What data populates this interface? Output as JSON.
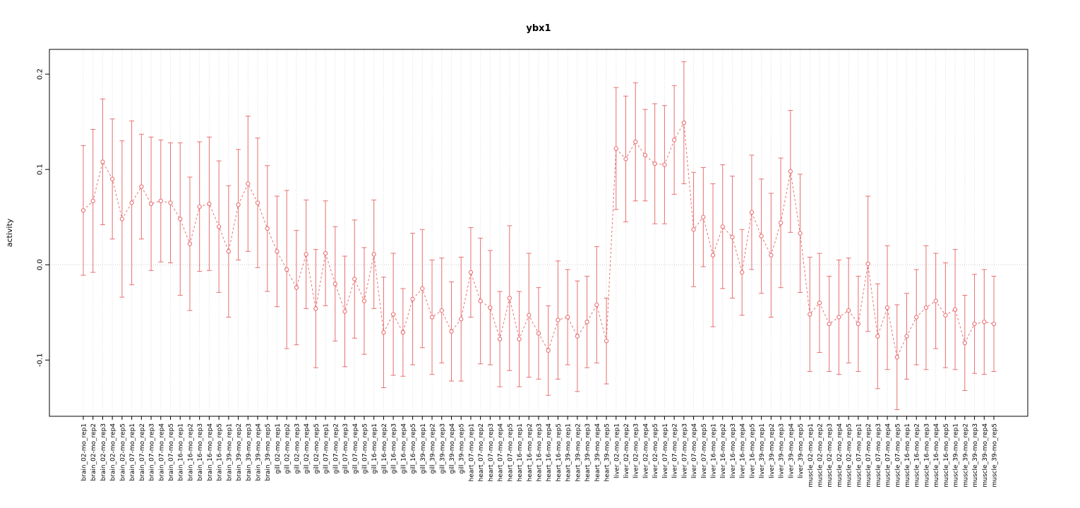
{
  "chart_data": {
    "type": "line",
    "title": "ybx1",
    "ylabel": "activity",
    "xlabel": "",
    "marker": "open-circle",
    "line_style": "dashed",
    "error_bars": true,
    "legend": "none",
    "grid": "vertical dotted gridline per category; horizontal dotted line at y=0",
    "ylim": [
      -0.159,
      0.226
    ],
    "yticks": [
      "-0.1",
      "0.0",
      "0.1",
      "0.2"
    ],
    "ytick_values": [
      -0.1,
      0.0,
      0.1,
      0.2
    ],
    "colors": {
      "series": "#e87070",
      "grid": "#dcdcdc",
      "zero_line": "#cccccc",
      "axis": "#000000",
      "background": "#ffffff"
    },
    "categories": [
      "brain_02-mo_rep1",
      "brain_02-mo_rep2",
      "brain_02-mo_rep3",
      "brain_02-mo_rep4",
      "brain_02-mo_rep5",
      "brain_07-mo_rep1",
      "brain_07-mo_rep2",
      "brain_07-mo_rep3",
      "brain_07-mo_rep4",
      "brain_07-mo_rep5",
      "brain_16-mo_rep1",
      "brain_16-mo_rep2",
      "brain_16-mo_rep3",
      "brain_16-mo_rep4",
      "brain_16-mo_rep5",
      "brain_39-mo_rep1",
      "brain_39-mo_rep2",
      "brain_39-mo_rep3",
      "brain_39-mo_rep4",
      "brain_39-mo_rep5",
      "gill_02-mo_rep1",
      "gill_02-mo_rep2",
      "gill_02-mo_rep3",
      "gill_02-mo_rep4",
      "gill_02-mo_rep5",
      "gill_07-mo_rep1",
      "gill_07-mo_rep2",
      "gill_07-mo_rep3",
      "gill_07-mo_rep4",
      "gill_07-mo_rep5",
      "gill_16-mo_rep1",
      "gill_16-mo_rep2",
      "gill_16-mo_rep3",
      "gill_16-mo_rep4",
      "gill_16-mo_rep5",
      "gill_39-mo_rep1",
      "gill_39-mo_rep2",
      "gill_39-mo_rep3",
      "gill_39-mo_rep4",
      "gill_39-mo_rep5",
      "heart_07-mo_rep1",
      "heart_07-mo_rep2",
      "heart_07-mo_rep3",
      "heart_07-mo_rep4",
      "heart_07-mo_rep5",
      "heart_16-mo_rep1",
      "heart_16-mo_rep2",
      "heart_16-mo_rep3",
      "heart_16-mo_rep4",
      "heart_16-mo_rep5",
      "heart_39-mo_rep1",
      "heart_39-mo_rep2",
      "heart_39-mo_rep3",
      "heart_39-mo_rep4",
      "heart_39-mo_rep5",
      "liver_02-mo_rep1",
      "liver_02-mo_rep2",
      "liver_02-mo_rep3",
      "liver_02-mo_rep4",
      "liver_02-mo_rep5",
      "liver_07-mo_rep1",
      "liver_07-mo_rep2",
      "liver_07-mo_rep3",
      "liver_07-mo_rep4",
      "liver_07-mo_rep5",
      "liver_16-mo_rep1",
      "liver_16-mo_rep2",
      "liver_16-mo_rep3",
      "liver_16-mo_rep4",
      "liver_16-mo_rep5",
      "liver_39-mo_rep1",
      "liver_39-mo_rep2",
      "liver_39-mo_rep3",
      "liver_39-mo_rep4",
      "liver_39-mo_rep5",
      "muscle_02-mo_rep1",
      "muscle_02-mo_rep2",
      "muscle_02-mo_rep3",
      "muscle_02-mo_rep4",
      "muscle_02-mo_rep5",
      "muscle_07-mo_rep1",
      "muscle_07-mo_rep2",
      "muscle_07-mo_rep3",
      "muscle_07-mo_rep4",
      "muscle_07-mo_rep5",
      "muscle_16-mo_rep1",
      "muscle_16-mo_rep2",
      "muscle_16-mo_rep3",
      "muscle_16-mo_rep4",
      "muscle_16-mo_rep5",
      "muscle_39-mo_rep1",
      "muscle_39-mo_rep2",
      "muscle_39-mo_rep3",
      "muscle_39-mo_rep4",
      "muscle_39-mo_rep5"
    ],
    "values": [
      0.057,
      0.067,
      0.108,
      0.09,
      0.048,
      0.065,
      0.082,
      0.064,
      0.067,
      0.065,
      0.048,
      0.022,
      0.061,
      0.064,
      0.04,
      0.014,
      0.063,
      0.085,
      0.065,
      0.038,
      0.014,
      -0.005,
      -0.024,
      0.011,
      -0.046,
      0.012,
      -0.02,
      -0.049,
      -0.015,
      -0.038,
      0.011,
      -0.071,
      -0.052,
      -0.071,
      -0.036,
      -0.025,
      -0.055,
      -0.048,
      -0.07,
      -0.057,
      -0.008,
      -0.038,
      -0.045,
      -0.078,
      -0.035,
      -0.078,
      -0.053,
      -0.072,
      -0.09,
      -0.058,
      -0.055,
      -0.075,
      -0.06,
      -0.042,
      -0.08,
      0.122,
      0.111,
      0.129,
      0.115,
      0.106,
      0.105,
      0.131,
      0.149,
      0.037,
      0.05,
      0.01,
      0.04,
      0.029,
      -0.008,
      0.055,
      0.03,
      0.01,
      0.044,
      0.098,
      0.033,
      -0.052,
      -0.04,
      -0.062,
      -0.055,
      -0.048,
      -0.062,
      0.001,
      -0.075,
      -0.045,
      -0.097,
      -0.075,
      -0.055,
      -0.045,
      -0.038,
      -0.053,
      -0.047,
      -0.082,
      -0.062,
      -0.06,
      -0.062
    ],
    "errors": [
      0.068,
      0.075,
      0.066,
      0.063,
      0.082,
      0.086,
      0.055,
      0.07,
      0.064,
      0.063,
      0.08,
      0.07,
      0.068,
      0.07,
      0.069,
      0.069,
      0.058,
      0.071,
      0.068,
      0.066,
      0.058,
      0.083,
      0.06,
      0.057,
      0.062,
      0.055,
      0.06,
      0.058,
      0.062,
      0.056,
      0.057,
      0.058,
      0.064,
      0.046,
      0.069,
      0.062,
      0.06,
      0.055,
      0.052,
      0.065,
      0.047,
      0.066,
      0.06,
      0.05,
      0.076,
      0.05,
      0.065,
      0.048,
      0.047,
      0.062,
      0.05,
      0.058,
      0.048,
      0.061,
      0.045,
      0.064,
      0.066,
      0.062,
      0.048,
      0.063,
      0.062,
      0.057,
      0.064,
      0.06,
      0.052,
      0.075,
      0.065,
      0.064,
      0.045,
      0.06,
      0.06,
      0.065,
      0.068,
      0.064,
      0.062,
      0.06,
      0.052,
      0.05,
      0.06,
      0.055,
      0.05,
      0.071,
      0.055,
      0.065,
      0.055,
      0.045,
      0.05,
      0.065,
      0.05,
      0.055,
      0.063,
      0.05,
      0.052,
      0.055,
      0.05
    ]
  }
}
